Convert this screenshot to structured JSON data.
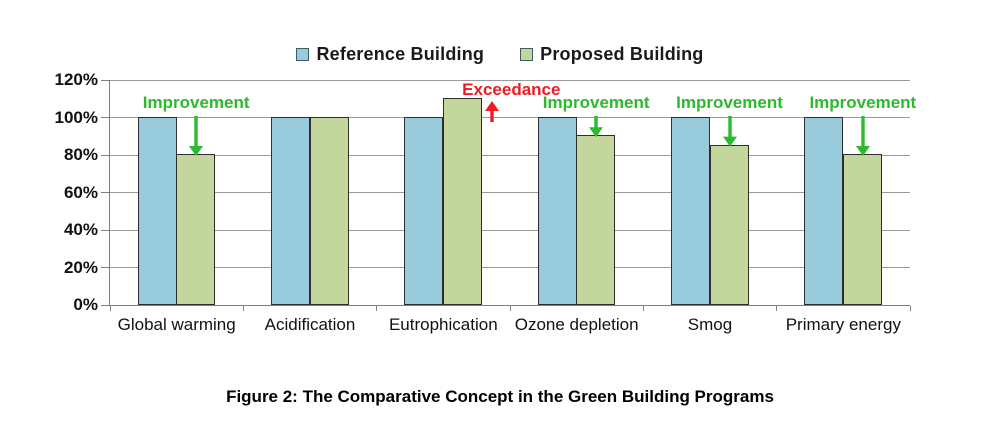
{
  "caption": "Figure 2: The Comparative Concept in the Green Building Programs",
  "colors": {
    "reference_fill": "#98CBDB",
    "proposed_fill": "#C3D69B",
    "bar_border": "#2d2d2d",
    "improvement_green": "#2DB92D",
    "exceedance_red": "#ED1C24",
    "gridline_gray": "#9a9a9a"
  },
  "chart_data": {
    "type": "bar",
    "title": "",
    "xlabel": "",
    "ylabel": "",
    "categories": [
      "Global warming",
      "Acidification",
      "Eutrophication",
      "Ozone depletion",
      "Smog",
      "Primary energy"
    ],
    "series": [
      {
        "name": "Reference Building",
        "color": "#98CBDB",
        "values": [
          100,
          100,
          100,
          100,
          100,
          100
        ]
      },
      {
        "name": "Proposed Building",
        "color": "#C3D69B",
        "values": [
          80,
          100,
          110,
          90,
          85,
          80
        ]
      }
    ],
    "ylim": [
      0,
      120
    ],
    "ytick_step": 20,
    "ytick_suffix": "%",
    "grid": true,
    "legend_position": "top-center",
    "annotations": [
      {
        "category_index": 0,
        "label": "Improvement",
        "color": "#2DB92D",
        "arrow": "down"
      },
      {
        "category_index": 2,
        "label": "Exceedance",
        "color": "#ED1C24",
        "arrow": "up"
      },
      {
        "category_index": 3,
        "label": "Improvement",
        "color": "#2DB92D",
        "arrow": "down"
      },
      {
        "category_index": 4,
        "label": "Improvement",
        "color": "#2DB92D",
        "arrow": "down"
      },
      {
        "category_index": 5,
        "label": "Improvement",
        "color": "#2DB92D",
        "arrow": "down"
      }
    ]
  }
}
